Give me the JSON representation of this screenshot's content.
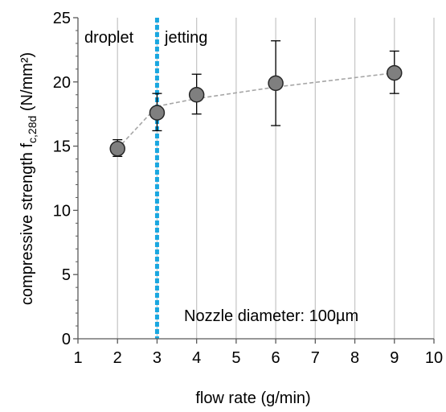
{
  "chart_data": {
    "type": "scatter",
    "xlabel": "flow rate (g/min)",
    "ylabel_main": "compressive strength f",
    "ylabel_sub": "c,28d",
    "ylabel_unit": " (N/mm²)",
    "xlim": [
      1,
      10
    ],
    "ylim": [
      0,
      25
    ],
    "xticks": [
      1,
      2,
      3,
      4,
      5,
      6,
      7,
      8,
      9,
      10
    ],
    "yticks": [
      0,
      5,
      10,
      15,
      20,
      25
    ],
    "grid": "vertical",
    "points": [
      {
        "x": 2,
        "y": 14.8,
        "err_low": 14.2,
        "err_high": 15.5
      },
      {
        "x": 3,
        "y": 17.6,
        "err_low": 16.2,
        "err_high": 19.1
      },
      {
        "x": 4,
        "y": 19.0,
        "err_low": 17.5,
        "err_high": 20.6
      },
      {
        "x": 6,
        "y": 19.9,
        "err_low": 16.6,
        "err_high": 23.2
      },
      {
        "x": 9,
        "y": 20.7,
        "err_low": 19.1,
        "err_high": 22.4
      }
    ],
    "trend_x": [
      2,
      3,
      4,
      6,
      9
    ],
    "trend_y": [
      14.8,
      18.1,
      18.7,
      19.6,
      20.7
    ],
    "threshold_x": 3,
    "region_left_label": "droplet",
    "region_right_label": "jetting",
    "annotation": "Nozzle diameter: 100µm",
    "colors": {
      "marker_fill": "#7f7f7f",
      "marker_stroke": "#262626",
      "trend": "#a6a6a6",
      "threshold": "#1aa7e0",
      "grid": "#c8c8c8",
      "axis": "#595959"
    }
  }
}
